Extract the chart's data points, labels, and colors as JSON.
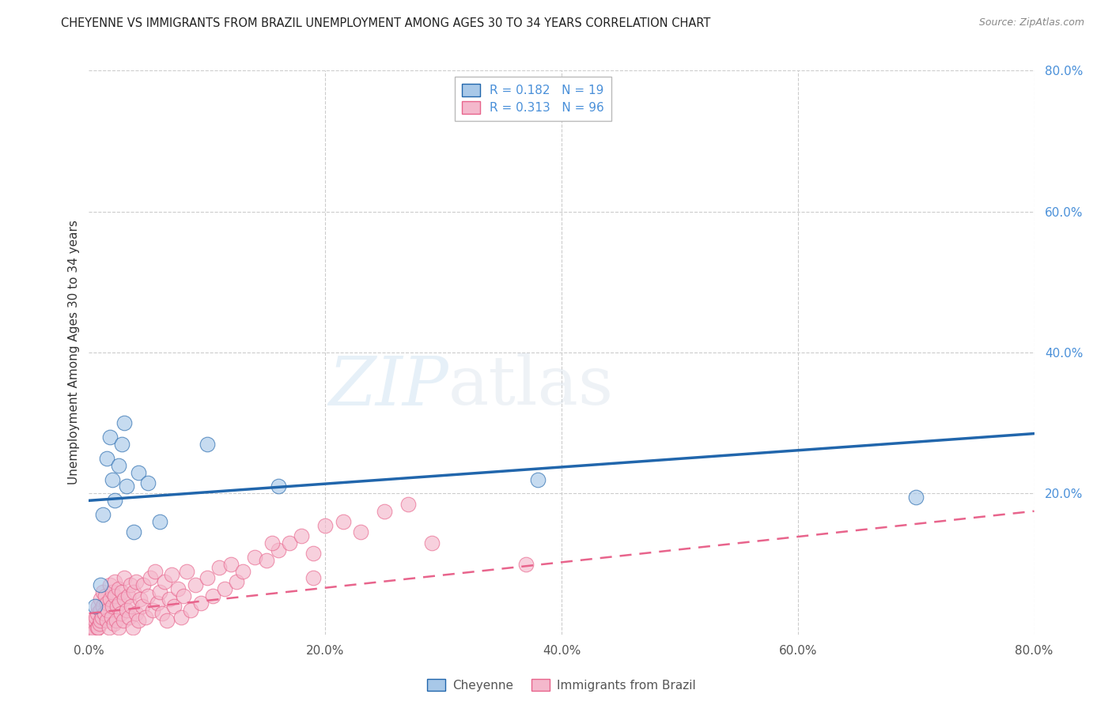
{
  "title": "CHEYENNE VS IMMIGRANTS FROM BRAZIL UNEMPLOYMENT AMONG AGES 30 TO 34 YEARS CORRELATION CHART",
  "source": "Source: ZipAtlas.com",
  "ylabel": "Unemployment Among Ages 30 to 34 years",
  "legend_label1": "Cheyenne",
  "legend_label2": "Immigrants from Brazil",
  "R1": 0.182,
  "N1": 19,
  "R2": 0.313,
  "N2": 96,
  "color_blue": "#a8c8e8",
  "color_pink": "#f4b8cc",
  "color_blue_line": "#2166ac",
  "color_pink_line": "#e8648c",
  "color_axis_right": "#4a90d9",
  "xlim": [
    0.0,
    0.8
  ],
  "ylim": [
    0.0,
    0.8
  ],
  "xtick_labels": [
    "0.0%",
    "20.0%",
    "40.0%",
    "60.0%",
    "80.0%"
  ],
  "xtick_vals": [
    0.0,
    0.2,
    0.4,
    0.6,
    0.8
  ],
  "ytick_labels": [
    "20.0%",
    "40.0%",
    "60.0%",
    "80.0%"
  ],
  "ytick_vals": [
    0.2,
    0.4,
    0.6,
    0.8
  ],
  "cheyenne_x": [
    0.005,
    0.01,
    0.012,
    0.015,
    0.018,
    0.02,
    0.022,
    0.025,
    0.028,
    0.03,
    0.032,
    0.038,
    0.042,
    0.05,
    0.06,
    0.1,
    0.16,
    0.38,
    0.7
  ],
  "cheyenne_y": [
    0.04,
    0.07,
    0.17,
    0.25,
    0.28,
    0.22,
    0.19,
    0.24,
    0.27,
    0.3,
    0.21,
    0.145,
    0.23,
    0.215,
    0.16,
    0.27,
    0.21,
    0.22,
    0.195
  ],
  "brazil_x": [
    0.002,
    0.003,
    0.004,
    0.005,
    0.005,
    0.006,
    0.007,
    0.007,
    0.008,
    0.008,
    0.009,
    0.01,
    0.01,
    0.01,
    0.011,
    0.012,
    0.012,
    0.013,
    0.014,
    0.015,
    0.015,
    0.016,
    0.017,
    0.018,
    0.018,
    0.019,
    0.02,
    0.02,
    0.021,
    0.022,
    0.022,
    0.023,
    0.024,
    0.025,
    0.025,
    0.026,
    0.027,
    0.028,
    0.029,
    0.03,
    0.03,
    0.032,
    0.033,
    0.034,
    0.035,
    0.036,
    0.037,
    0.038,
    0.04,
    0.04,
    0.042,
    0.043,
    0.045,
    0.046,
    0.048,
    0.05,
    0.052,
    0.054,
    0.056,
    0.058,
    0.06,
    0.062,
    0.064,
    0.066,
    0.068,
    0.07,
    0.072,
    0.075,
    0.078,
    0.08,
    0.083,
    0.086,
    0.09,
    0.095,
    0.1,
    0.105,
    0.11,
    0.115,
    0.12,
    0.125,
    0.13,
    0.14,
    0.15,
    0.16,
    0.17,
    0.18,
    0.19,
    0.2,
    0.215,
    0.23,
    0.25,
    0.27,
    0.155,
    0.19,
    0.29,
    0.37
  ],
  "brazil_y": [
    0.01,
    0.015,
    0.01,
    0.02,
    0.005,
    0.025,
    0.01,
    0.03,
    0.01,
    0.04,
    0.015,
    0.02,
    0.035,
    0.05,
    0.025,
    0.04,
    0.06,
    0.03,
    0.055,
    0.02,
    0.045,
    0.035,
    0.01,
    0.05,
    0.07,
    0.025,
    0.04,
    0.06,
    0.015,
    0.055,
    0.075,
    0.02,
    0.04,
    0.065,
    0.01,
    0.045,
    0.03,
    0.06,
    0.02,
    0.05,
    0.08,
    0.035,
    0.055,
    0.025,
    0.07,
    0.04,
    0.01,
    0.06,
    0.03,
    0.075,
    0.02,
    0.05,
    0.04,
    0.07,
    0.025,
    0.055,
    0.08,
    0.035,
    0.09,
    0.045,
    0.06,
    0.03,
    0.075,
    0.02,
    0.05,
    0.085,
    0.04,
    0.065,
    0.025,
    0.055,
    0.09,
    0.035,
    0.07,
    0.045,
    0.08,
    0.055,
    0.095,
    0.065,
    0.1,
    0.075,
    0.09,
    0.11,
    0.105,
    0.12,
    0.13,
    0.14,
    0.115,
    0.155,
    0.16,
    0.145,
    0.175,
    0.185,
    0.13,
    0.08,
    0.13,
    0.1
  ],
  "blue_line_x": [
    0.0,
    0.8
  ],
  "blue_line_y": [
    0.19,
    0.285
  ],
  "pink_line_x": [
    0.0,
    0.8
  ],
  "pink_line_y": [
    0.03,
    0.175
  ],
  "watermark_zip": "ZIP",
  "watermark_atlas": "atlas",
  "background_color": "#ffffff",
  "grid_color": "#cccccc"
}
